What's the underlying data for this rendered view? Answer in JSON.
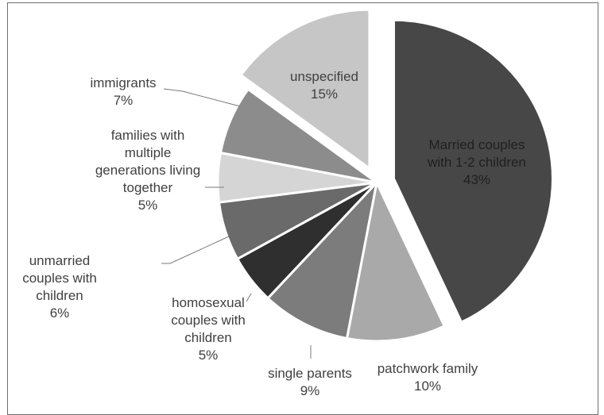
{
  "chart_data": {
    "type": "pie",
    "title": "",
    "slices": [
      {
        "label": "Married couples with 1-2 children",
        "lines": [
          "Married couples",
          "with 1-2 children",
          "43%"
        ],
        "value": 43,
        "color": "#474747"
      },
      {
        "label": "patchwork family",
        "lines": [
          "patchwork family",
          "10%"
        ],
        "value": 10,
        "color": "#a9a9a9"
      },
      {
        "label": "single parents",
        "lines": [
          "single parents",
          "9%"
        ],
        "value": 9,
        "color": "#7c7c7c"
      },
      {
        "label": "homosexual couples with children",
        "lines": [
          "homosexual",
          "couples with",
          "children",
          "5%"
        ],
        "value": 5,
        "color": "#2f2f2f"
      },
      {
        "label": "unmarried couples with children",
        "lines": [
          "unmarried",
          "couples with",
          "children",
          "6%"
        ],
        "value": 6,
        "color": "#6a6a6a"
      },
      {
        "label": "families with multiple generations living together",
        "lines": [
          "families with",
          "multiple",
          "generations living",
          "together",
          "5%"
        ],
        "value": 5,
        "color": "#d5d5d5"
      },
      {
        "label": "immigrants",
        "lines": [
          "immigrants",
          "7%"
        ],
        "value": 7,
        "color": "#8c8c8c"
      },
      {
        "label": "unspecified",
        "lines": [
          "unspecified",
          "15%"
        ],
        "value": 15,
        "color": "#c6c6c6"
      }
    ]
  }
}
